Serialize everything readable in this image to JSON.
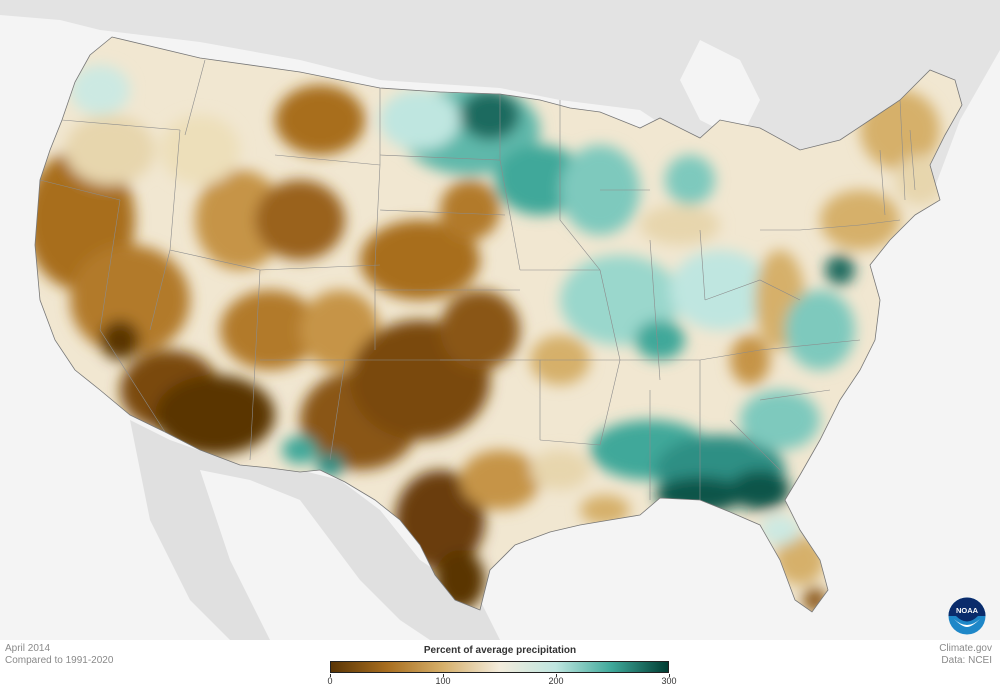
{
  "caption": {
    "date": "April 2014",
    "baseline": "Compared to 1991-2020",
    "credit_site": "Climate.gov",
    "credit_data": "Data: NCEI"
  },
  "logo": {
    "name": "noaa-logo",
    "text": "NOAA"
  },
  "legend": {
    "title": "Percent of average precipitation",
    "min": 0,
    "max": 300,
    "ticks": [
      {
        "value": 0,
        "label": "0"
      },
      {
        "value": 100,
        "label": "100"
      },
      {
        "value": 200,
        "label": "200"
      },
      {
        "value": 300,
        "label": "300"
      }
    ],
    "colors": {
      "very_dry": "#5a3505",
      "dry": "#a86e1f",
      "slightly_dry": "#d6b06b",
      "near_normal": "#f3ecdc",
      "slightly_wet": "#bfe6e0",
      "wet": "#3fa89a",
      "very_wet": "#013d33"
    }
  },
  "map": {
    "land_outside_color": "#e0e0e0",
    "water_color": "#f4f4f4"
  }
}
